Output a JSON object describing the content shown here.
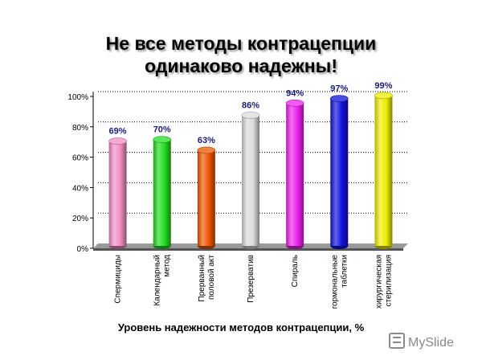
{
  "title_line1": "Не все методы контрацепции",
  "title_line2": "одинаково надежны!",
  "watermark": "MySlide",
  "chart_data": {
    "type": "bar",
    "title": "Не все методы контрацепции одинаково надежны!",
    "xlabel": "Уровень надежности методов контрацепции, %",
    "ylabel": "",
    "ylim": [
      0,
      100
    ],
    "yticks": [
      "0%",
      "20%",
      "40%",
      "60%",
      "80%",
      "100%"
    ],
    "grid": true,
    "categories": [
      [
        "Спермициды"
      ],
      [
        "Календарный",
        "метод"
      ],
      [
        "Прерванный",
        "половой акт"
      ],
      [
        "Презерватив"
      ],
      [
        "Спираль"
      ],
      [
        "гормональные",
        "таблетки"
      ],
      [
        "хирургическая",
        "стерилизация"
      ]
    ],
    "values": [
      69,
      70,
      63,
      86,
      94,
      97,
      99
    ],
    "value_labels": [
      "69%",
      "70%",
      "63%",
      "86%",
      "94%",
      "97%",
      "99%"
    ],
    "colors": [
      "#f38fc2",
      "#22dd22",
      "#ee5500",
      "#dcdcdc",
      "#ee22ee",
      "#1111dd",
      "#eeee00"
    ]
  }
}
